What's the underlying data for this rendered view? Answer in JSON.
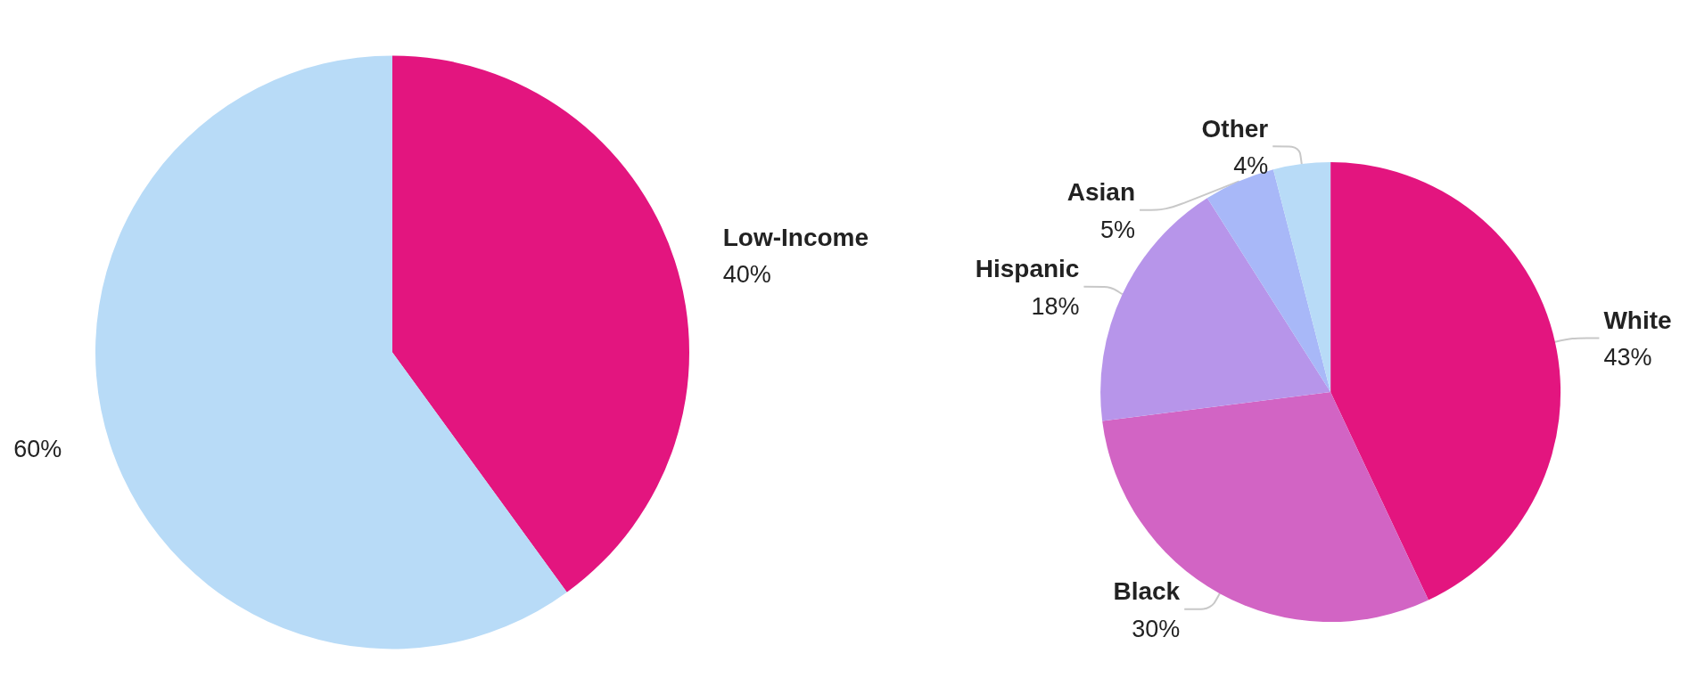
{
  "chart_data": [
    {
      "type": "pie",
      "categories": [
        "Low-Income",
        null
      ],
      "values": [
        40,
        60
      ],
      "colors": [
        "#e3157f",
        "#b8dbf7"
      ],
      "value_labels": [
        "40%",
        "60%"
      ]
    },
    {
      "type": "pie",
      "categories": [
        "White",
        "Black",
        "Hispanic",
        "Asian",
        "Other"
      ],
      "values": [
        43,
        30,
        18,
        5,
        4
      ],
      "colors": [
        "#e3157f",
        "#d264c4",
        "#b795ea",
        "#a8b8f8",
        "#b8dbf7"
      ],
      "value_labels": [
        "43%",
        "30%",
        "18%",
        "5%",
        "4%"
      ]
    }
  ]
}
